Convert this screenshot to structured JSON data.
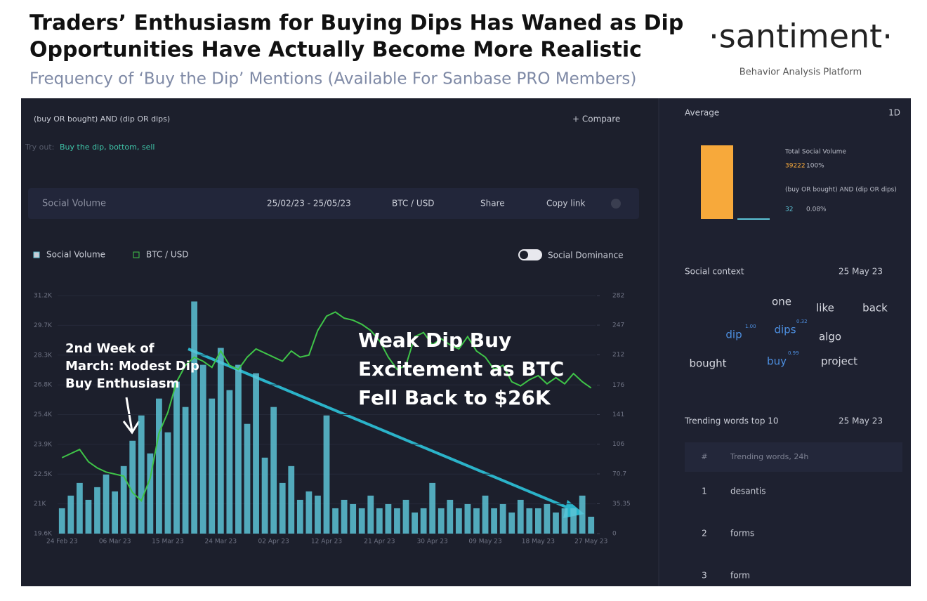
{
  "header": {
    "title_lines": [
      "Traders’ Enthusiasm for Buying Dips Has Waned as Dip",
      "Opportunities Have Actually Become More Realistic"
    ],
    "subtitle": "Frequency of ‘Buy the Dip’ Mentions (Available For Sanbase PRO Members)",
    "logo": "·santiment·",
    "tagline": "Behavior Analysis Platform"
  },
  "toolbar": {
    "query": "(buy OR bought) AND (dip OR dips)",
    "compare": "+ Compare",
    "try_out": "Try out:",
    "suggestions": "Buy the dip, bottom, sell",
    "metric": "Social Volume",
    "date_range": "25/02/23 - 25/05/23",
    "pair": "BTC / USD",
    "share": "Share",
    "copy_link": "Copy link",
    "dominance": "Social Dominance"
  },
  "chart_data": {
    "type": "combo",
    "categories": [
      "24 Feb 23",
      null,
      null,
      null,
      null,
      null,
      "06 Mar 23",
      null,
      null,
      null,
      null,
      null,
      "15 Mar 23",
      null,
      null,
      null,
      null,
      null,
      "24 Mar 23",
      null,
      null,
      null,
      null,
      null,
      "02 Apr 23",
      null,
      null,
      null,
      null,
      null,
      "12 Apr 23",
      null,
      null,
      null,
      null,
      null,
      "21 Apr 23",
      null,
      null,
      null,
      null,
      null,
      "30 Apr 23",
      null,
      null,
      null,
      null,
      null,
      "09 May 23",
      null,
      null,
      null,
      null,
      null,
      "18 May 23",
      null,
      null,
      null,
      null,
      null,
      "27 May 23"
    ],
    "series": [
      {
        "name": "Social Volume",
        "type": "bar",
        "axis": "y2",
        "color": "#5cc3d6",
        "values": [
          30,
          45,
          60,
          40,
          55,
          70,
          50,
          80,
          110,
          140,
          95,
          160,
          120,
          180,
          150,
          275,
          200,
          160,
          220,
          170,
          200,
          130,
          190,
          90,
          150,
          60,
          80,
          40,
          50,
          45,
          140,
          30,
          40,
          35,
          30,
          45,
          30,
          35,
          30,
          40,
          25,
          30,
          60,
          30,
          40,
          30,
          35,
          30,
          45,
          30,
          35,
          25,
          40,
          30,
          30,
          35,
          25,
          30,
          30,
          45,
          20
        ]
      },
      {
        "name": "BTC / USD",
        "type": "line",
        "axis": "y",
        "color": "#3fc448",
        "values": [
          23300,
          23500,
          23700,
          23100,
          22800,
          22600,
          22500,
          22400,
          21600,
          21200,
          22300,
          24500,
          25500,
          27000,
          27800,
          28200,
          28000,
          27700,
          28500,
          27800,
          27600,
          28200,
          28600,
          28400,
          28200,
          28000,
          28500,
          28200,
          28300,
          29500,
          30200,
          30400,
          30100,
          30000,
          29800,
          29500,
          29000,
          28200,
          27600,
          27800,
          29200,
          29400,
          28800,
          29100,
          28800,
          28600,
          29200,
          28500,
          28200,
          27600,
          27800,
          27000,
          26800,
          27100,
          27300,
          26900,
          27200,
          26900,
          27400,
          27000,
          26700
        ]
      }
    ],
    "ylim": [
      19600,
      31200
    ],
    "yticks": [
      {
        "value": 31200,
        "label": "31.2K"
      },
      {
        "value": 29750,
        "label": "29.7K"
      },
      {
        "value": 28300,
        "label": "28.3K"
      },
      {
        "value": 26850,
        "label": "26.8K"
      },
      {
        "value": 25400,
        "label": "25.4K"
      },
      {
        "value": 23950,
        "label": "23.9K"
      },
      {
        "value": 22500,
        "label": "22.5K"
      },
      {
        "value": 21050,
        "label": "21K"
      },
      {
        "value": 19600,
        "label": "19.6K"
      }
    ],
    "y2lim": [
      0,
      282
    ],
    "y2ticks": [
      282,
      247,
      212,
      176,
      141,
      106,
      70.7,
      35.35,
      0
    ],
    "annotations": [
      {
        "lines": [
          "2nd Week of",
          "March: Modest Dip",
          "Buy Enthusiasm"
        ]
      },
      {
        "lines": [
          "Weak Dip Buy",
          "Excitement as BTC",
          "Fell Back to $26K"
        ]
      }
    ]
  },
  "sidebar": {
    "average": {
      "title": "Average",
      "interval": "1D",
      "items": [
        {
          "name": "Total Social Volume",
          "value": 39222,
          "percent": "100%",
          "color": "#f7a93b"
        },
        {
          "name": "(buy OR bought) AND (dip OR dips)",
          "value": 32,
          "percent": "0.08%",
          "color": "#5cc3d6"
        }
      ]
    },
    "social_context": {
      "title": "Social context",
      "date": "25 May 23",
      "words": [
        {
          "word": "one"
        },
        {
          "word": "like"
        },
        {
          "word": "back"
        },
        {
          "word": "dip",
          "score": "1.00"
        },
        {
          "word": "dips",
          "score": "0.32"
        },
        {
          "word": "algo"
        },
        {
          "word": "bought"
        },
        {
          "word": "buy",
          "score": "0.99"
        },
        {
          "word": "project"
        }
      ]
    },
    "trending": {
      "title": "Trending words top 10",
      "date": "25 May 23",
      "headers": [
        "#",
        "Trending words, 24h"
      ],
      "rows": [
        [
          "1",
          "desantis"
        ],
        [
          "2",
          "forms"
        ],
        [
          "3",
          "form"
        ]
      ]
    }
  }
}
